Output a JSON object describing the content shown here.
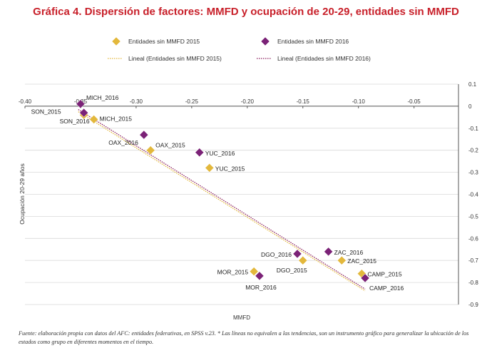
{
  "title": "Gráfica 4. Dispersión de factores: MMFD y ocupación de 20-29, entidades sin MMFD",
  "footnote": "Fuente: elaboración propia con datos del AFC: entidades federativas, en SPSS v.23. * Las líneas no equivalen a las tendencias, son un instrumento gráfico para generalizar la ubicación de los estados como grupo en diferentes momentos en el tiempo.",
  "colors": {
    "title": "#c8202a",
    "s2015": "#e3b83c",
    "s2016": "#7b2277",
    "trend2015": "#e3b83c",
    "trend2016": "#8b1f5e"
  },
  "chart_data": {
    "type": "scatter",
    "xlabel": "MMFD",
    "ylabel": "Ocupación 20-29 años",
    "xlim": [
      -0.4,
      -0.01
    ],
    "ylim": [
      -0.9,
      0.1
    ],
    "x_ticks": [
      "-0.40",
      "-0.35",
      "-0.30",
      "-0.25",
      "-0.20",
      "-0.15",
      "-0.10",
      "-0.05"
    ],
    "y_ticks": [
      "0.1",
      "0",
      "-0.1",
      "-0.2",
      "-0.3",
      "-0.4",
      "-0.5",
      "-0.6",
      "-0.7",
      "-0.8",
      "-0.9"
    ],
    "legend_position": "top",
    "series": [
      {
        "name": "Entidades sin MMFD 2015",
        "points": [
          {
            "label": "SON_2015",
            "x": -0.347,
            "y": -0.04
          },
          {
            "label": "MICH_2015",
            "x": -0.338,
            "y": -0.06
          },
          {
            "label": "OAX_2015",
            "x": -0.287,
            "y": -0.2
          },
          {
            "label": "YUC_2015",
            "x": -0.234,
            "y": -0.28
          },
          {
            "label": "MOR_2015",
            "x": -0.194,
            "y": -0.75
          },
          {
            "label": "DGO_2015",
            "x": -0.15,
            "y": -0.7
          },
          {
            "label": "ZAC_2015",
            "x": -0.115,
            "y": -0.7
          },
          {
            "label": "CAMP_2015",
            "x": -0.097,
            "y": -0.76
          }
        ]
      },
      {
        "name": "Entidades sin MMFD 2016",
        "points": [
          {
            "label": "MICH_2016",
            "x": -0.35,
            "y": 0.01
          },
          {
            "label": "SON_2016",
            "x": -0.347,
            "y": -0.03
          },
          {
            "label": "OAX_2016",
            "x": -0.293,
            "y": -0.13
          },
          {
            "label": "YUC_2016",
            "x": -0.243,
            "y": -0.21
          },
          {
            "label": "MOR_2016",
            "x": -0.189,
            "y": -0.77
          },
          {
            "label": "DGO_2016",
            "x": -0.155,
            "y": -0.67
          },
          {
            "label": "ZAC_2016",
            "x": -0.127,
            "y": -0.66
          },
          {
            "label": "CAMP_2016",
            "x": -0.094,
            "y": -0.78
          }
        ]
      }
    ],
    "trendlines": [
      {
        "name": "Lineal (Entidades sin MMFD 2015)",
        "x": [
          -0.352,
          -0.094
        ],
        "y": [
          -0.025,
          -0.838
        ]
      },
      {
        "name": "Lineal (Entidades sin MMFD 2016)",
        "x": [
          -0.352,
          -0.094
        ],
        "y": [
          -0.015,
          -0.83
        ]
      }
    ]
  }
}
